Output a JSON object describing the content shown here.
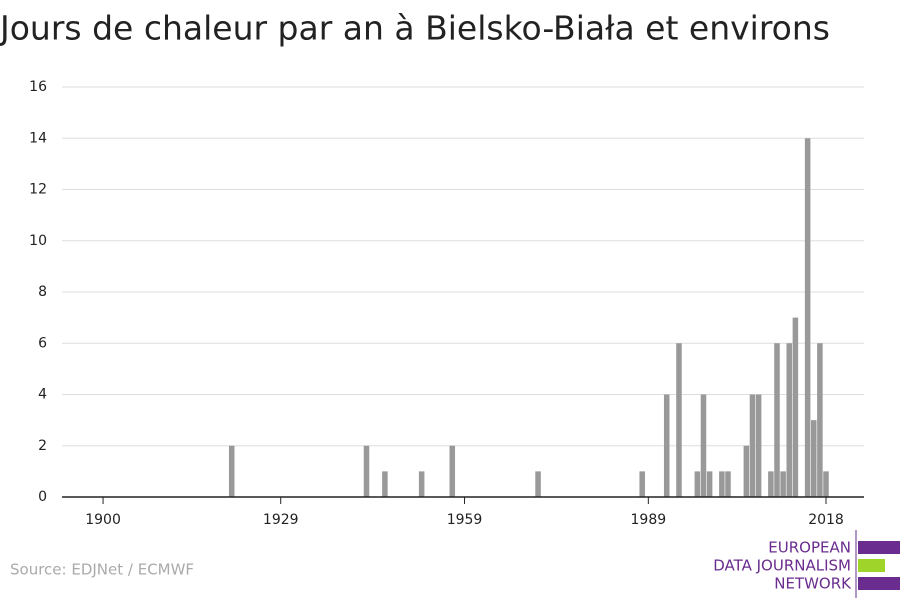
{
  "chart_data": {
    "type": "bar",
    "title": "Jours de chaleur par an à Bielsko-Biała et environs",
    "x": [
      1921,
      1943,
      1946,
      1952,
      1957,
      1971,
      1988,
      1992,
      1994,
      1997,
      1998,
      1999,
      2001,
      2002,
      2005,
      2006,
      2007,
      2009,
      2010,
      2011,
      2012,
      2013,
      2015,
      2016,
      2017,
      2018
    ],
    "values": [
      2,
      2,
      1,
      1,
      2,
      1,
      1,
      4,
      6,
      1,
      4,
      1,
      1,
      1,
      2,
      4,
      4,
      1,
      6,
      1,
      6,
      7,
      14,
      3,
      6,
      1
    ],
    "color": "#999999",
    "xlim": [
      1893.3,
      2024.2
    ],
    "xticks": [
      1900,
      1929,
      1959,
      1989,
      2018
    ],
    "ylim": [
      0,
      16
    ],
    "yticks": [
      0,
      2,
      4,
      6,
      8,
      10,
      12,
      14,
      16
    ],
    "grid": true,
    "source": "Source: EDJNet / ECMWF"
  },
  "logo": {
    "lines": [
      "EUROPEAN",
      "DATA JOURNALISM",
      "NETWORK"
    ]
  }
}
